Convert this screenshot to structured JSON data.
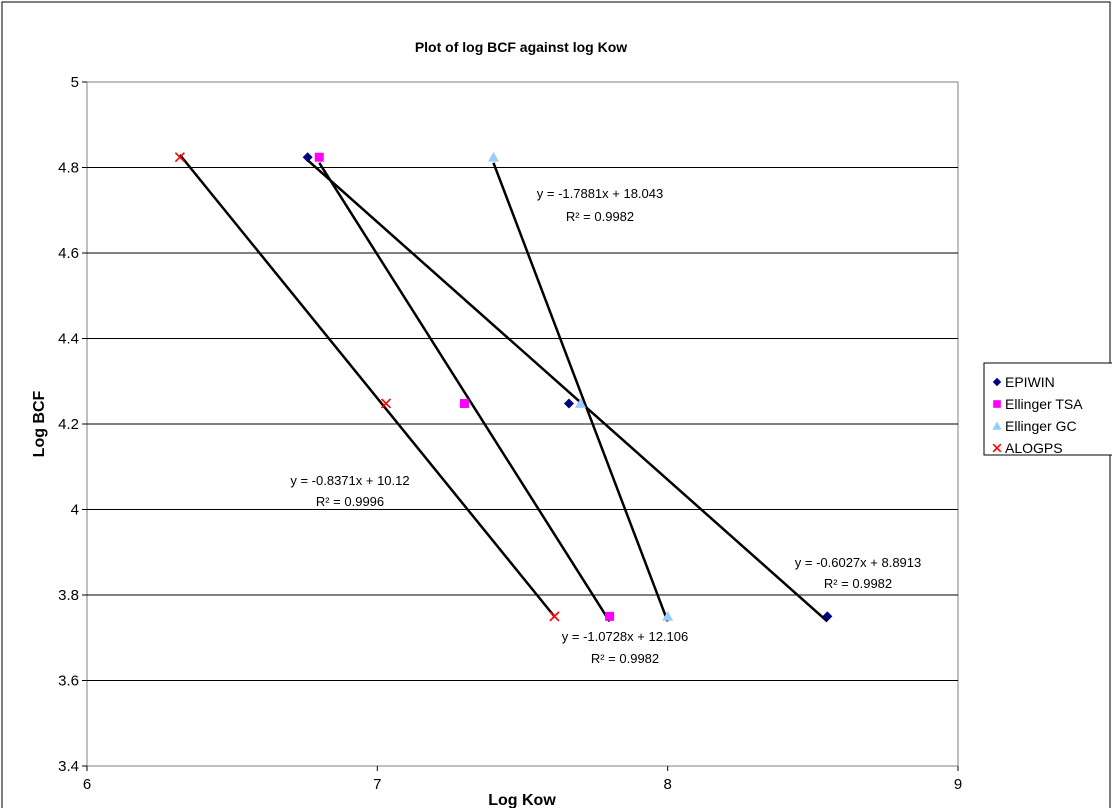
{
  "chart_data": {
    "type": "scatter",
    "title": "Plot of log BCF against log Kow",
    "xlabel": "Log Kow",
    "ylabel": "Log BCF",
    "xlim": [
      6,
      9
    ],
    "ylim": [
      3.4,
      5
    ],
    "x_ticks": [
      "6",
      "7",
      "8",
      "9"
    ],
    "y_ticks": [
      "3.4",
      "3.6",
      "3.8",
      "4",
      "4.2",
      "4.4",
      "4.6",
      "4.8",
      "5"
    ],
    "grid": "horizontal",
    "legend_position": "right",
    "series": [
      {
        "name": "EPIWIN",
        "marker": "diamond",
        "color": "#000080",
        "points": [
          [
            6.76,
            4.824
          ],
          [
            7.66,
            4.248
          ],
          [
            8.55,
            3.75
          ]
        ],
        "trendline": {
          "slope": -0.6027,
          "intercept": 8.8913
        },
        "equation": "y = -0.6027x + 8.8913",
        "r2": "R² = 0.9982"
      },
      {
        "name": "Ellinger TSA",
        "marker": "square",
        "color": "#FF00FF",
        "points": [
          [
            6.8,
            4.824
          ],
          [
            7.3,
            4.248
          ],
          [
            7.8,
            3.75
          ]
        ],
        "trendline": {
          "slope": -1.0728,
          "intercept": 12.106
        },
        "equation": "y = -1.0728x + 12.106",
        "r2": "R² = 0.9982"
      },
      {
        "name": "Ellinger GC",
        "marker": "triangle",
        "color": "#99CCFF",
        "points": [
          [
            7.4,
            4.824
          ],
          [
            7.7,
            4.248
          ],
          [
            8.0,
            3.75
          ]
        ],
        "trendline": {
          "slope": -1.7881,
          "intercept": 18.043
        },
        "equation": "y = -1.7881x + 18.043",
        "r2": "R² = 0.9982"
      },
      {
        "name": "ALOGPS",
        "marker": "x",
        "color": "#FF0000",
        "points": [
          [
            6.32,
            4.824
          ],
          [
            7.03,
            4.248
          ],
          [
            7.61,
            3.75
          ]
        ],
        "trendline": {
          "slope": -0.8371,
          "intercept": 10.12
        },
        "equation": "y = -0.8371x + 10.12",
        "r2": "R² = 0.9996"
      }
    ]
  }
}
